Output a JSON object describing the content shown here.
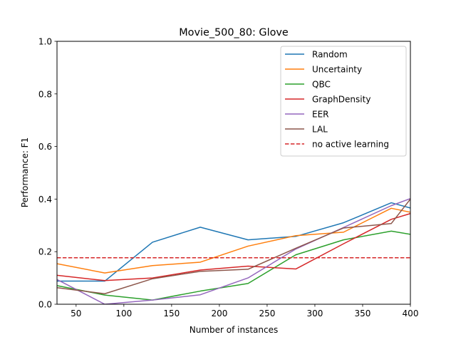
{
  "chart_data": {
    "type": "line",
    "title": "Movie_500_80: Glove",
    "xlabel": "Number of instances",
    "ylabel": "Performance: F1",
    "xlim": [
      30,
      400
    ],
    "ylim": [
      0.0,
      1.0
    ],
    "xticks": [
      50,
      100,
      150,
      200,
      250,
      300,
      350,
      400
    ],
    "xtick_labels": [
      "50",
      "100",
      "150",
      "200",
      "250",
      "300",
      "350",
      "400"
    ],
    "yticks": [
      0.0,
      0.2,
      0.4,
      0.6,
      0.8,
      1.0
    ],
    "ytick_labels": [
      "0.0",
      "0.2",
      "0.4",
      "0.6",
      "0.8",
      "1.0"
    ],
    "grid": false,
    "legend_position": "top-right",
    "x": [
      30,
      80,
      130,
      180,
      230,
      280,
      330,
      380,
      400
    ],
    "series": [
      {
        "name": "Random",
        "color": "#1f77b4",
        "style": "solid",
        "values": [
          0.088,
          0.088,
          0.236,
          0.293,
          0.245,
          0.258,
          0.31,
          0.386,
          0.366
        ]
      },
      {
        "name": "Uncertainty",
        "color": "#ff7f0e",
        "style": "solid",
        "values": [
          0.154,
          0.119,
          0.147,
          0.16,
          0.221,
          0.261,
          0.274,
          0.365,
          0.35
        ]
      },
      {
        "name": "QBC",
        "color": "#2ca02c",
        "style": "solid",
        "values": [
          0.071,
          0.035,
          0.016,
          0.05,
          0.079,
          0.188,
          0.245,
          0.278,
          0.266
        ]
      },
      {
        "name": "GraphDensity",
        "color": "#d62728",
        "style": "solid",
        "values": [
          0.11,
          0.09,
          0.1,
          0.13,
          0.145,
          0.134,
          0.23,
          0.323,
          0.345
        ]
      },
      {
        "name": "EER",
        "color": "#9467bd",
        "style": "solid",
        "values": [
          0.094,
          0.0,
          0.016,
          0.036,
          0.1,
          0.21,
          0.292,
          0.375,
          0.402
        ]
      },
      {
        "name": "LAL",
        "color": "#8c564b",
        "style": "solid",
        "values": [
          0.063,
          0.04,
          0.097,
          0.125,
          0.133,
          0.213,
          0.29,
          0.307,
          0.4
        ]
      },
      {
        "name": "no active learning",
        "color": "#d62728",
        "style": "dashed",
        "values": [
          0.177,
          0.177,
          0.177,
          0.177,
          0.177,
          0.177,
          0.177,
          0.177,
          0.177
        ]
      }
    ]
  }
}
